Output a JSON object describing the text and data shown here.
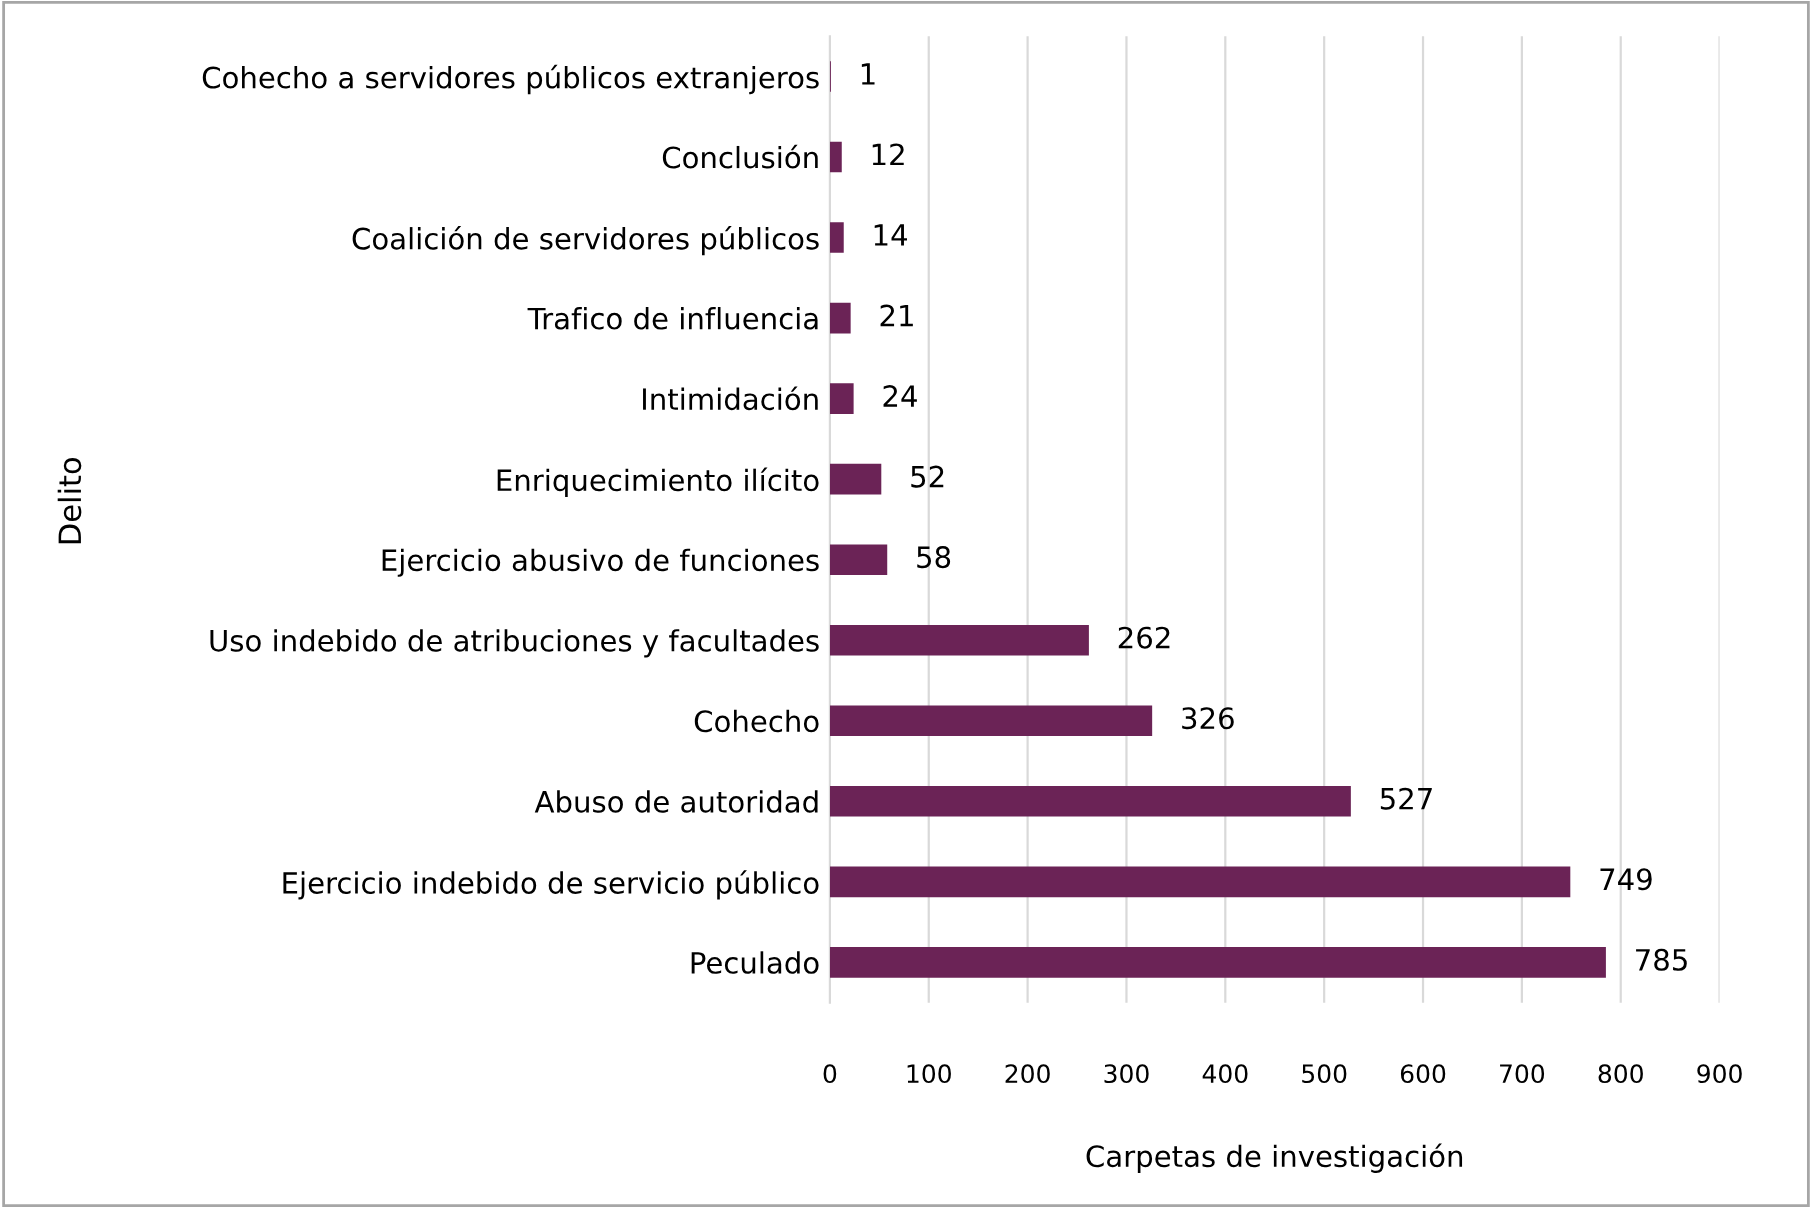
{
  "chart_data": {
    "type": "bar",
    "orientation": "horizontal",
    "xlabel": "Carpetas de investigación",
    "ylabel": "Delito",
    "categories": [
      "Cohecho a servidores públicos extranjeros",
      "Conclusión",
      "Coalición de servidores públicos",
      "Trafico de influencia",
      "Intimidación",
      "Enriquecimiento ilícito",
      "Ejercicio abusivo de funciones",
      "Uso indebido de atribuciones y facultades",
      "Cohecho",
      "Abuso de autoridad",
      "Ejercicio indebido de servicio público",
      "Peculado"
    ],
    "values": [
      1,
      12,
      14,
      21,
      24,
      52,
      58,
      262,
      326,
      527,
      749,
      785
    ],
    "color": "#6b2356",
    "data_labels": true,
    "grid": "x",
    "xlim": [
      0,
      900
    ],
    "xticks": [
      0,
      100,
      200,
      300,
      400,
      500,
      600,
      700,
      800,
      900
    ]
  }
}
